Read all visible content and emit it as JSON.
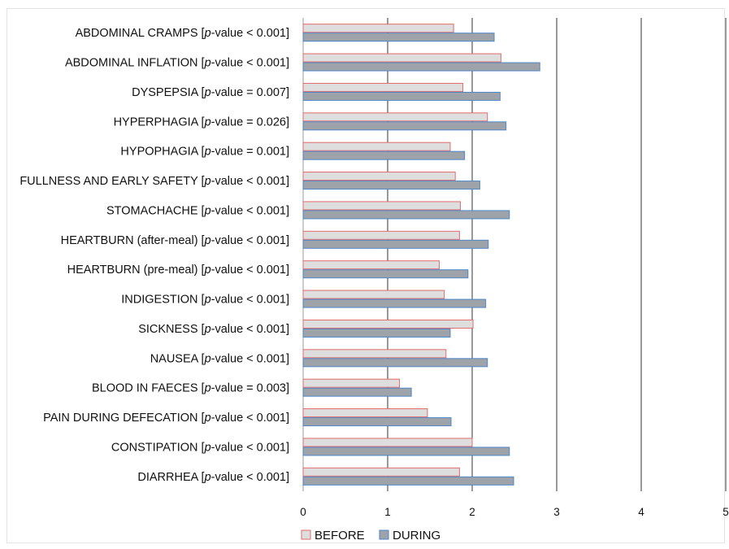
{
  "chart_data": {
    "type": "bar",
    "orientation": "horizontal",
    "categories": [
      {
        "name": "ABDOMINAL CRAMPS",
        "p_prefix": "[",
        "p_italic": "p",
        "p_suffix": "-value < 0.001]"
      },
      {
        "name": "ABDOMINAL INFLATION",
        "p_prefix": "[",
        "p_italic": "p",
        "p_suffix": "-value < 0.001]"
      },
      {
        "name": "DYSPEPSIA",
        "p_prefix": "[",
        "p_italic": "p",
        "p_suffix": "-value = 0.007]"
      },
      {
        "name": "HYPERPHAGIA",
        "p_prefix": "[",
        "p_italic": "p",
        "p_suffix": "-value = 0.026]"
      },
      {
        "name": "HYPOPHAGIA",
        "p_prefix": "[",
        "p_italic": "p",
        "p_suffix": "-value = 0.001]"
      },
      {
        "name": "FULLNESS AND EARLY SAFETY",
        "p_prefix": "[",
        "p_italic": "p",
        "p_suffix": "-value < 0.001]"
      },
      {
        "name": "STOMACHACHE",
        "p_prefix": "[",
        "p_italic": "p",
        "p_suffix": "-value < 0.001]"
      },
      {
        "name": "HEARTBURN (after-meal)",
        "p_prefix": "[",
        "p_italic": "p",
        "p_suffix": "-value < 0.001]"
      },
      {
        "name": "HEARTBURN (pre-meal)",
        "p_prefix": "[",
        "p_italic": "p",
        "p_suffix": "-value < 0.001]"
      },
      {
        "name": "INDIGESTION ",
        "p_prefix": "[",
        "p_italic": "p",
        "p_suffix": "-value < 0.001]"
      },
      {
        "name": "SICKNESS",
        "p_prefix": "[",
        "p_italic": "p",
        "p_suffix": "-value < 0.001]"
      },
      {
        "name": "NAUSEA",
        "p_prefix": "[",
        "p_italic": "p",
        "p_suffix": "-value < 0.001]"
      },
      {
        "name": "BLOOD IN FAECES",
        "p_prefix": "[",
        "p_italic": "p",
        "p_suffix": "-value = 0.003]"
      },
      {
        "name": "PAIN DURING DEFECATION",
        "p_prefix": "[",
        "p_italic": "p",
        "p_suffix": "-value < 0.001]"
      },
      {
        "name": "CONSTIPATION ",
        "p_prefix": "[",
        "p_italic": "p",
        "p_suffix": "-value < 0.001]"
      },
      {
        "name": "DIARRHEA ",
        "p_prefix": "[",
        "p_italic": "p",
        "p_suffix": "-value < 0.001]"
      }
    ],
    "series": [
      {
        "name": "BEFORE",
        "fill": "#dedede",
        "stroke": "#e06b6b",
        "values": [
          1.78,
          2.34,
          1.89,
          2.18,
          1.74,
          1.8,
          1.86,
          1.85,
          1.61,
          1.67,
          2.01,
          1.69,
          1.14,
          1.47,
          2.0,
          1.85
        ]
      },
      {
        "name": "DURING",
        "fill": "#9ea3a9",
        "stroke": "#4f86c6",
        "values": [
          2.26,
          2.8,
          2.33,
          2.4,
          1.91,
          2.09,
          2.44,
          2.19,
          1.95,
          2.16,
          1.74,
          2.18,
          1.28,
          1.75,
          2.44,
          2.49
        ]
      }
    ],
    "x_ticks": [
      "0",
      "1",
      "2",
      "3",
      "4",
      "5"
    ],
    "xlim": [
      0,
      5
    ],
    "grid": "vertical major gridlines",
    "legend_position": "bottom"
  }
}
